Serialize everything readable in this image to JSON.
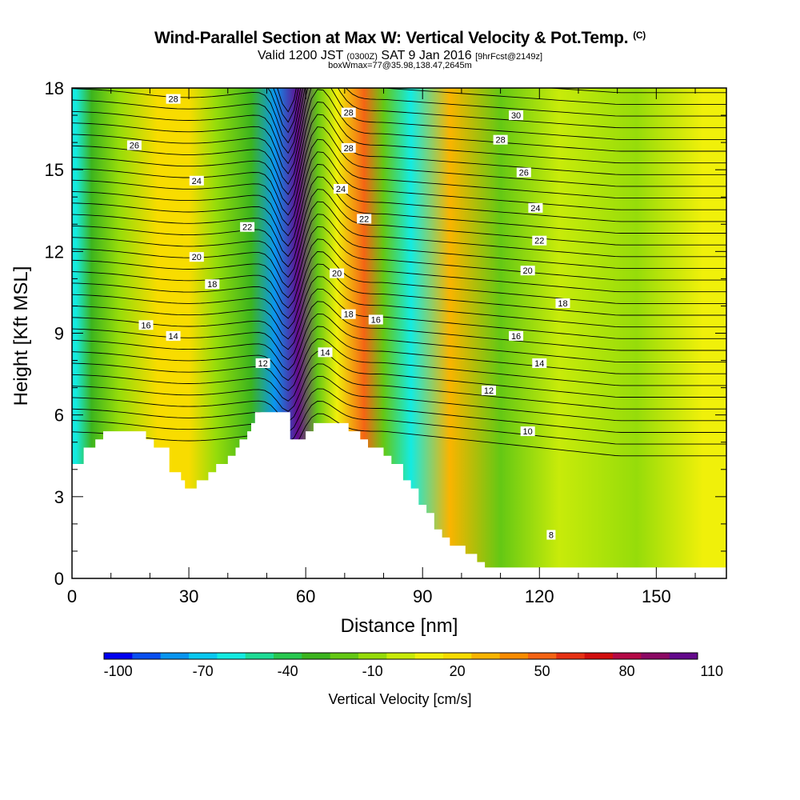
{
  "header": {
    "title": "Wind-Parallel Section at Max W: Vertical Velocity & Pot.Temp.",
    "title_tag": "(C)",
    "valid_prefix": "Valid 1200 JST",
    "valid_utc": "(0300Z)",
    "valid_date": "SAT 9 Jan 2016",
    "forecast": "[9hrFcst@2149z]",
    "box_info": "boxWmax=77@35.98,138.47,2645m"
  },
  "chart_data": {
    "type": "heatmap",
    "xlabel": "Distance [nm]",
    "ylabel": "Height [Kft MSL]",
    "xlim": [
      0,
      168
    ],
    "ylim": [
      0,
      18
    ],
    "x_ticks": [
      0,
      30,
      60,
      90,
      120,
      150
    ],
    "y_ticks": [
      0,
      3,
      6,
      9,
      12,
      15,
      18
    ],
    "colorbar": {
      "title": "Vertical Velocity [cm/s]",
      "tick_labels": [
        "-100",
        "-70",
        "-40",
        "-10",
        "20",
        "50",
        "80",
        "110"
      ],
      "colors": [
        "#0000f0",
        "#0a50f0",
        "#0a96f0",
        "#0ac8f0",
        "#14ebe1",
        "#1edc96",
        "#28c850",
        "#3cb41e",
        "#64c814",
        "#96dc0a",
        "#c8eb0a",
        "#f0f00a",
        "#f8dc00",
        "#fab400",
        "#fa8c00",
        "#f56414",
        "#e63214",
        "#d20f0f",
        "#b40a46",
        "#8c0a64",
        "#640a8c"
      ]
    },
    "velocity_bands": [
      {
        "center_nm": 1,
        "value_cm_s": -55
      },
      {
        "center_nm": 5,
        "value_cm_s": -25
      },
      {
        "center_nm": 12,
        "value_cm_s": -10
      },
      {
        "center_nm": 22,
        "value_cm_s": 25
      },
      {
        "center_nm": 30,
        "value_cm_s": 20
      },
      {
        "center_nm": 37,
        "value_cm_s": -10
      },
      {
        "center_nm": 46,
        "value_cm_s": -25
      },
      {
        "center_nm": 52,
        "value_cm_s": -75
      },
      {
        "center_nm": 58,
        "value_cm_s": 105
      },
      {
        "center_nm": 63,
        "value_cm_s": -15
      },
      {
        "center_nm": 68,
        "value_cm_s": 15
      },
      {
        "center_nm": 75,
        "value_cm_s": 50
      },
      {
        "center_nm": 80,
        "value_cm_s": -20
      },
      {
        "center_nm": 87,
        "value_cm_s": -55
      },
      {
        "center_nm": 97,
        "value_cm_s": 35
      },
      {
        "center_nm": 110,
        "value_cm_s": -20
      },
      {
        "center_nm": 125,
        "value_cm_s": 5
      },
      {
        "center_nm": 145,
        "value_cm_s": -5
      },
      {
        "center_nm": 162,
        "value_cm_s": 10
      }
    ],
    "potential_temperature_labels": [
      {
        "text": "28",
        "x_nm": 26,
        "y_kft": 17.6
      },
      {
        "text": "26",
        "x_nm": 16,
        "y_kft": 15.9
      },
      {
        "text": "24",
        "x_nm": 32,
        "y_kft": 14.6
      },
      {
        "text": "22",
        "x_nm": 45,
        "y_kft": 12.9
      },
      {
        "text": "20",
        "x_nm": 32,
        "y_kft": 11.8
      },
      {
        "text": "18",
        "x_nm": 36,
        "y_kft": 10.8
      },
      {
        "text": "16",
        "x_nm": 19,
        "y_kft": 9.3
      },
      {
        "text": "14",
        "x_nm": 26,
        "y_kft": 8.9
      },
      {
        "text": "12",
        "x_nm": 49,
        "y_kft": 7.9
      },
      {
        "text": "28",
        "x_nm": 71,
        "y_kft": 17.1
      },
      {
        "text": "28",
        "x_nm": 71,
        "y_kft": 15.8
      },
      {
        "text": "24",
        "x_nm": 69,
        "y_kft": 14.3
      },
      {
        "text": "22",
        "x_nm": 75,
        "y_kft": 13.2
      },
      {
        "text": "20",
        "x_nm": 68,
        "y_kft": 11.2
      },
      {
        "text": "18",
        "x_nm": 71,
        "y_kft": 9.7
      },
      {
        "text": "16",
        "x_nm": 78,
        "y_kft": 9.5
      },
      {
        "text": "14",
        "x_nm": 65,
        "y_kft": 8.3
      },
      {
        "text": "30",
        "x_nm": 114,
        "y_kft": 17.0
      },
      {
        "text": "28",
        "x_nm": 110,
        "y_kft": 16.1
      },
      {
        "text": "26",
        "x_nm": 116,
        "y_kft": 14.9
      },
      {
        "text": "24",
        "x_nm": 119,
        "y_kft": 13.6
      },
      {
        "text": "22",
        "x_nm": 120,
        "y_kft": 12.4
      },
      {
        "text": "20",
        "x_nm": 117,
        "y_kft": 11.3
      },
      {
        "text": "18",
        "x_nm": 126,
        "y_kft": 10.1
      },
      {
        "text": "16",
        "x_nm": 114,
        "y_kft": 8.9
      },
      {
        "text": "14",
        "x_nm": 120,
        "y_kft": 7.9
      },
      {
        "text": "12",
        "x_nm": 107,
        "y_kft": 6.9
      },
      {
        "text": "10",
        "x_nm": 117,
        "y_kft": 5.4
      },
      {
        "text": "8",
        "x_nm": 123,
        "y_kft": 1.6
      }
    ],
    "terrain": [
      [
        0,
        4.2
      ],
      [
        3,
        4.2
      ],
      [
        3,
        4.8
      ],
      [
        6,
        4.8
      ],
      [
        6,
        5.1
      ],
      [
        8,
        5.1
      ],
      [
        8,
        5.4
      ],
      [
        15,
        5.4
      ],
      [
        15,
        5.4
      ],
      [
        19,
        5.4
      ],
      [
        19,
        5.1
      ],
      [
        21,
        5.1
      ],
      [
        21,
        4.8
      ],
      [
        25,
        4.8
      ],
      [
        25,
        3.9
      ],
      [
        28,
        3.9
      ],
      [
        28,
        3.6
      ],
      [
        29,
        3.6
      ],
      [
        29,
        3.3
      ],
      [
        32,
        3.3
      ],
      [
        32,
        3.6
      ],
      [
        35,
        3.6
      ],
      [
        35,
        3.9
      ],
      [
        37,
        3.9
      ],
      [
        37,
        4.2
      ],
      [
        40,
        4.2
      ],
      [
        40,
        4.5
      ],
      [
        42,
        4.5
      ],
      [
        42,
        4.8
      ],
      [
        43,
        4.8
      ],
      [
        43,
        5.1
      ],
      [
        45,
        5.1
      ],
      [
        45,
        5.4
      ],
      [
        46,
        5.4
      ],
      [
        46,
        5.7
      ],
      [
        47,
        5.7
      ],
      [
        47,
        6.1
      ],
      [
        56,
        6.1
      ],
      [
        56,
        5.1
      ],
      [
        60,
        5.1
      ],
      [
        60,
        5.4
      ],
      [
        62,
        5.4
      ],
      [
        62,
        5.7
      ],
      [
        71,
        5.7
      ],
      [
        71,
        5.4
      ],
      [
        74,
        5.4
      ],
      [
        74,
        5.1
      ],
      [
        76,
        5.1
      ],
      [
        76,
        4.8
      ],
      [
        80,
        4.8
      ],
      [
        80,
        4.5
      ],
      [
        82,
        4.5
      ],
      [
        82,
        4.2
      ],
      [
        85,
        4.2
      ],
      [
        85,
        3.6
      ],
      [
        87,
        3.6
      ],
      [
        87,
        3.3
      ],
      [
        89,
        3.3
      ],
      [
        89,
        2.7
      ],
      [
        91,
        2.7
      ],
      [
        91,
        2.4
      ],
      [
        93,
        2.4
      ],
      [
        93,
        1.8
      ],
      [
        95,
        1.8
      ],
      [
        95,
        1.5
      ],
      [
        97,
        1.5
      ],
      [
        97,
        1.2
      ],
      [
        101,
        1.2
      ],
      [
        101,
        0.9
      ],
      [
        104,
        0.9
      ],
      [
        104,
        0.6
      ],
      [
        106,
        0.6
      ],
      [
        106,
        0.4
      ],
      [
        168,
        0.4
      ]
    ]
  }
}
